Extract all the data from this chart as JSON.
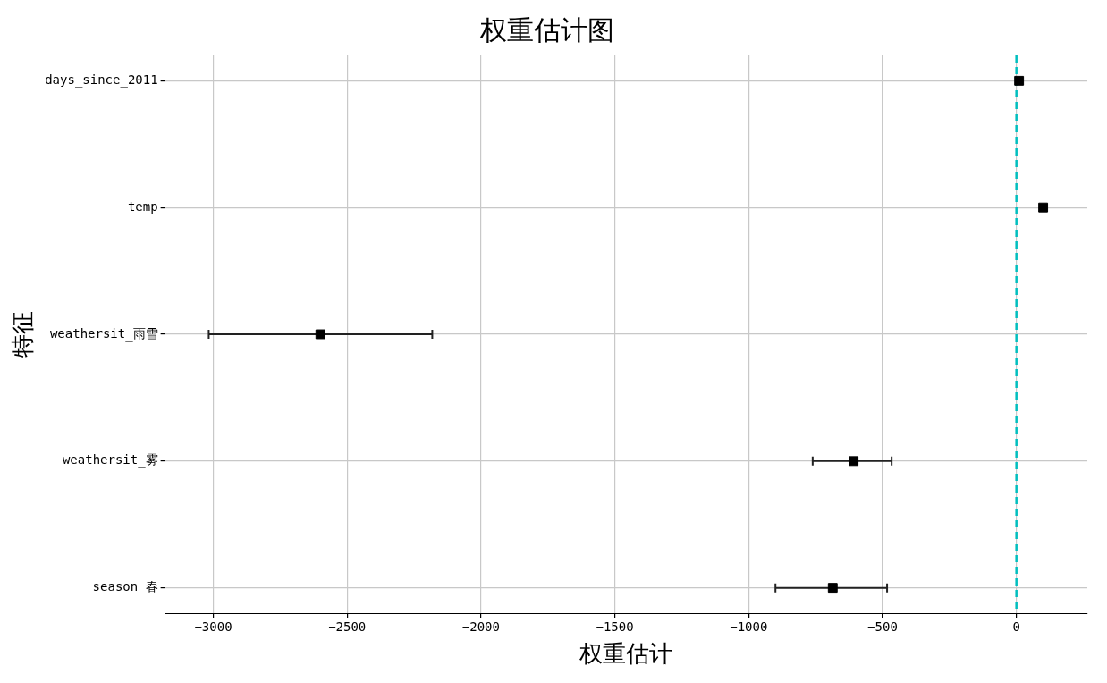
{
  "chart_data": {
    "type": "scatter",
    "orientation": "horizontal",
    "title": "权重估计图",
    "xlabel": "权重估计",
    "ylabel": "特征",
    "categories": [
      "days_since_2011",
      "temp",
      "weathersit_雨雪",
      "weathersit_雾",
      "season_春"
    ],
    "values": [
      10,
      100,
      -2600,
      -608,
      -686
    ],
    "errors": [
      null,
      null,
      [
        -3017,
        -2182
      ],
      [
        -761,
        -466
      ],
      [
        -900,
        -483
      ]
    ],
    "color": "#000000",
    "marker": "square",
    "xlim": [
      -3180,
      265
    ],
    "xticks": [
      -3000,
      -2500,
      -2000,
      -1500,
      -1000,
      -500,
      0
    ],
    "ref_lines": [
      {
        "axis": "x",
        "value": 0,
        "color": "#00bfbf",
        "line_style": "dashed"
      }
    ],
    "grid": true,
    "legend": false
  }
}
